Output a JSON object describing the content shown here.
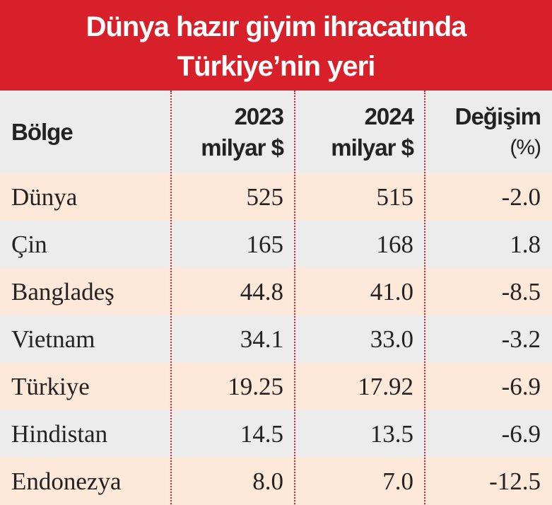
{
  "header": {
    "title": [
      "Dünya hazır giyim ihracatında",
      "Türkiye’nin yeri"
    ]
  },
  "table": {
    "columns": [
      [
        "Bölge"
      ],
      [
        "2023",
        "milyar $"
      ],
      [
        "2024",
        "milyar $"
      ],
      [
        "Değişim",
        "(%)"
      ]
    ],
    "rows": [
      [
        "Dünya",
        "525",
        "515",
        "-2.0"
      ],
      [
        "Çin",
        "165",
        "168",
        "1.8"
      ],
      [
        "Bangladeş",
        "44.8",
        "41.0",
        "-8.5"
      ],
      [
        "Vietnam",
        "34.1",
        "33.0",
        "-3.2"
      ],
      [
        "Türkiye",
        "19.25",
        "17.92",
        "-6.9"
      ],
      [
        "Hindistan",
        "14.5",
        "13.5",
        "-6.9"
      ],
      [
        "Endonezya",
        "8.0",
        "7.0",
        "-12.5"
      ]
    ]
  }
}
